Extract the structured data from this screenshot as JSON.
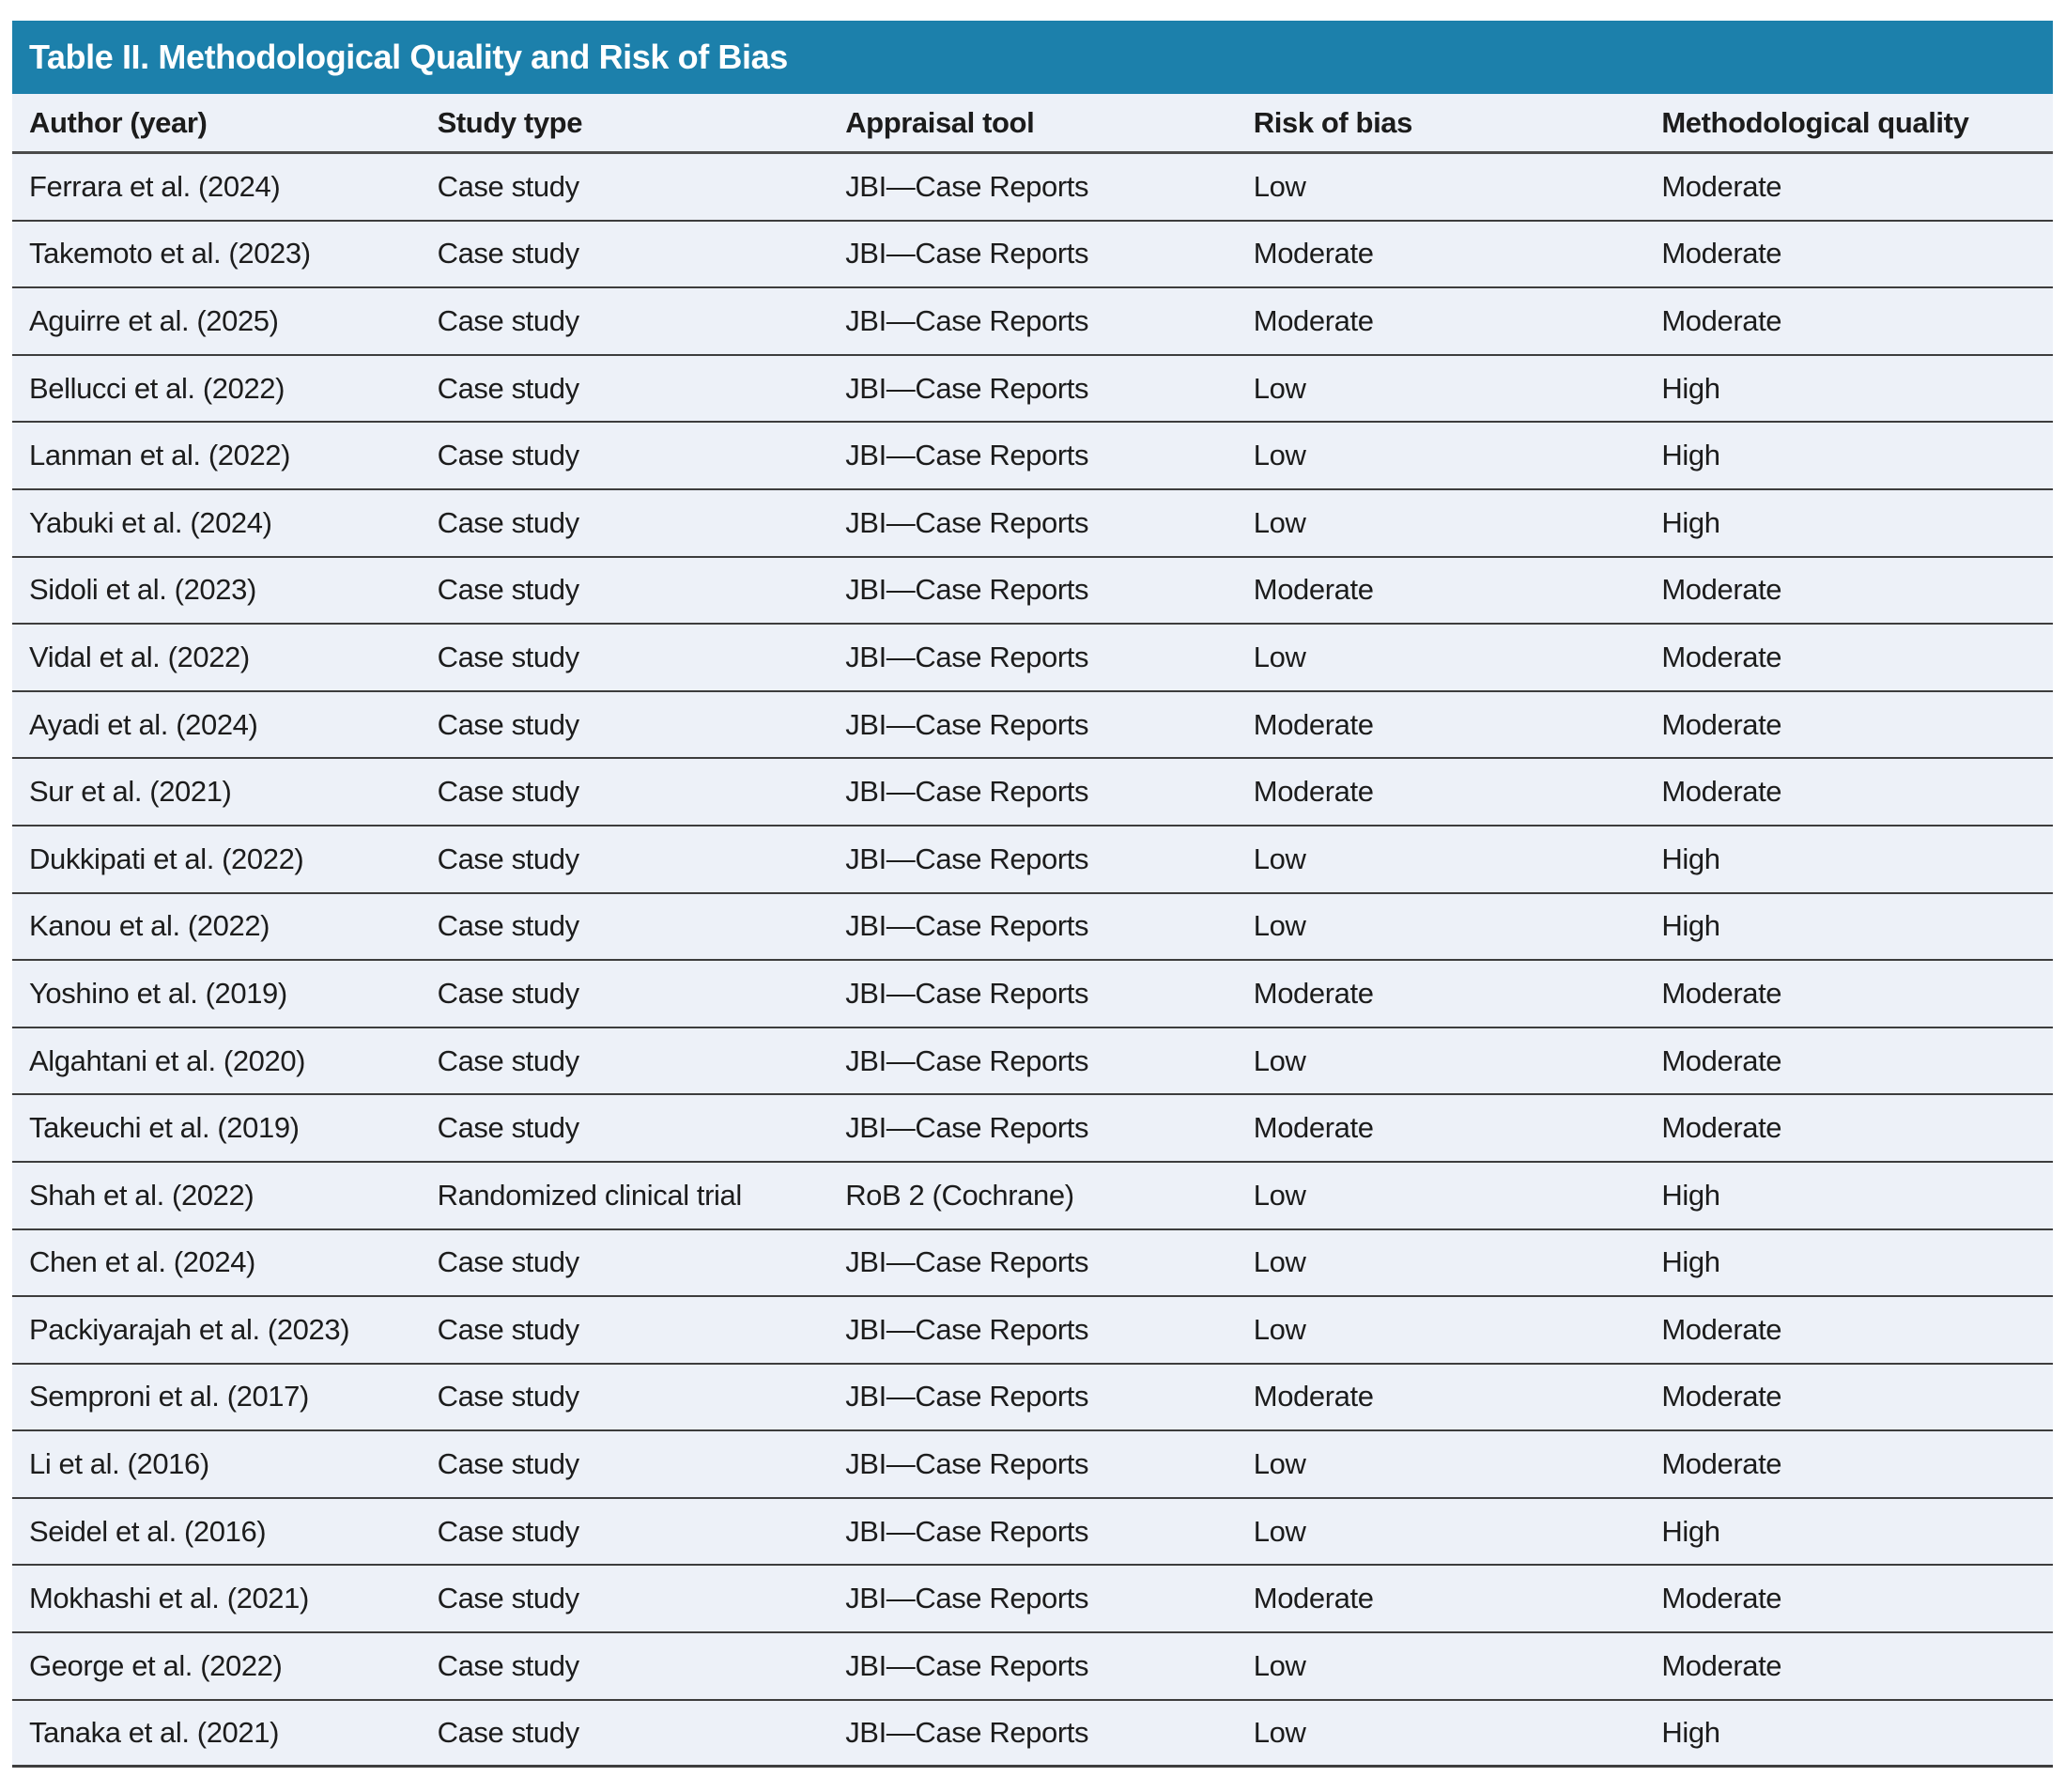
{
  "table": {
    "title": "Table II. Methodological Quality and Risk of Bias",
    "columns": [
      "Author (year)",
      "Study type",
      "Appraisal tool",
      "Risk of bias",
      "Methodological quality"
    ],
    "rows": [
      [
        "Ferrara et al. (2024)",
        "Case study",
        "JBI—Case Reports",
        "Low",
        "Moderate"
      ],
      [
        "Takemoto et al. (2023)",
        "Case study",
        "JBI—Case Reports",
        "Moderate",
        "Moderate"
      ],
      [
        "Aguirre et al. (2025)",
        "Case study",
        "JBI—Case Reports",
        "Moderate",
        "Moderate"
      ],
      [
        "Bellucci et al. (2022)",
        "Case study",
        "JBI—Case Reports",
        "Low",
        "High"
      ],
      [
        "Lanman et al. (2022)",
        "Case study",
        "JBI—Case Reports",
        "Low",
        "High"
      ],
      [
        "Yabuki et al. (2024)",
        "Case study",
        "JBI—Case Reports",
        "Low",
        "High"
      ],
      [
        "Sidoli et al. (2023)",
        "Case study",
        "JBI—Case Reports",
        "Moderate",
        "Moderate"
      ],
      [
        "Vidal et al. (2022)",
        "Case study",
        "JBI—Case Reports",
        "Low",
        "Moderate"
      ],
      [
        "Ayadi et al. (2024)",
        "Case study",
        "JBI—Case Reports",
        "Moderate",
        "Moderate"
      ],
      [
        "Sur et al. (2021)",
        "Case study",
        "JBI—Case Reports",
        "Moderate",
        "Moderate"
      ],
      [
        "Dukkipati et al. (2022)",
        "Case study",
        "JBI—Case Reports",
        "Low",
        "High"
      ],
      [
        "Kanou et al. (2022)",
        "Case study",
        "JBI—Case Reports",
        "Low",
        "High"
      ],
      [
        "Yoshino et al. (2019)",
        "Case study",
        "JBI—Case Reports",
        "Moderate",
        "Moderate"
      ],
      [
        "Algahtani et al. (2020)",
        "Case study",
        "JBI—Case Reports",
        "Low",
        "Moderate"
      ],
      [
        "Takeuchi et al. (2019)",
        "Case study",
        "JBI—Case Reports",
        "Moderate",
        "Moderate"
      ],
      [
        "Shah et al. (2022)",
        "Randomized clinical trial",
        "RoB 2 (Cochrane)",
        "Low",
        "High"
      ],
      [
        "Chen et al. (2024)",
        "Case study",
        "JBI—Case Reports",
        "Low",
        "High"
      ],
      [
        "Packiyarajah et al. (2023)",
        "Case study",
        "JBI—Case Reports",
        "Low",
        "Moderate"
      ],
      [
        "Semproni et al. (2017)",
        "Case study",
        "JBI—Case Reports",
        "Moderate",
        "Moderate"
      ],
      [
        "Li et al. (2016)",
        "Case study",
        "JBI—Case Reports",
        "Low",
        "Moderate"
      ],
      [
        "Seidel et al. (2016)",
        "Case study",
        "JBI—Case Reports",
        "Low",
        "High"
      ],
      [
        "Mokhashi et al. (2021)",
        "Case study",
        "JBI—Case Reports",
        "Moderate",
        "Moderate"
      ],
      [
        "George et al. (2022)",
        "Case study",
        "JBI—Case Reports",
        "Low",
        "Moderate"
      ],
      [
        "Tanaka et al. (2021)",
        "Case study",
        "JBI—Case Reports",
        "Low",
        "High"
      ]
    ],
    "colors": {
      "header_bar_bg": "#1c80ab",
      "header_bar_text": "#ffffff",
      "row_bg": "#edf1f8",
      "row_border": "#3d3d3d",
      "text": "#1c1c1c"
    }
  }
}
